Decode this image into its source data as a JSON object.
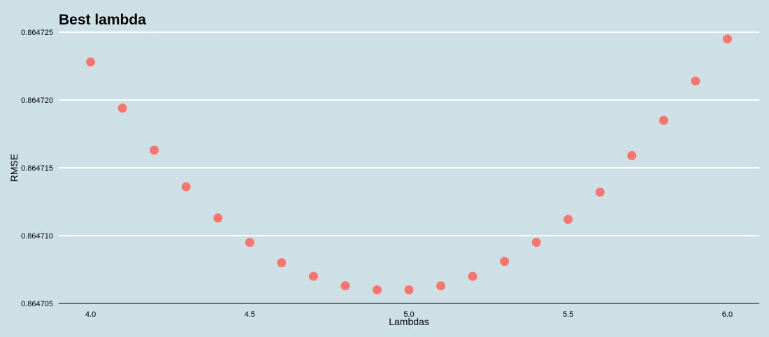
{
  "chart_data": {
    "type": "scatter",
    "title": "Best lambda",
    "xlabel": "Lambdas",
    "ylabel": "RMSE",
    "xlim": [
      3.9,
      6.1
    ],
    "ylim": [
      0.864705,
      0.864725
    ],
    "x_ticks": [
      "4.0",
      "4.5",
      "5.0",
      "5.5",
      "6.0"
    ],
    "y_ticks": [
      "0.864705",
      "0.864710",
      "0.864715",
      "0.864720",
      "0.864725"
    ],
    "grid": "horizontal",
    "point_color": "#f8766d",
    "grid_color": "#ffffff",
    "x": [
      4.0,
      4.1,
      4.2,
      4.3,
      4.4,
      4.5,
      4.6,
      4.7,
      4.8,
      4.9,
      5.0,
      5.1,
      5.2,
      5.3,
      5.4,
      5.5,
      5.6,
      5.7,
      5.8,
      5.9,
      6.0
    ],
    "y": [
      0.8647228,
      0.8647194,
      0.8647163,
      0.8647136,
      0.8647113,
      0.8647095,
      0.864708,
      0.864707,
      0.8647063,
      0.864706,
      0.864706,
      0.8647063,
      0.864707,
      0.8647081,
      0.8647095,
      0.8647112,
      0.8647132,
      0.8647159,
      0.8647185,
      0.8647214,
      0.8647245
    ]
  }
}
